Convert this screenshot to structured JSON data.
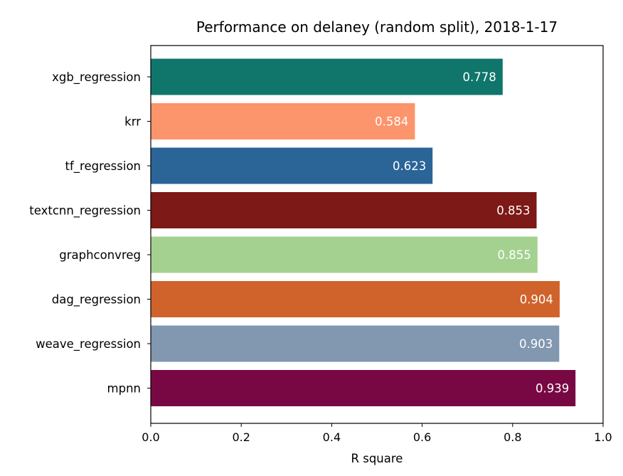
{
  "chart_data": {
    "type": "bar",
    "orientation": "horizontal",
    "title": "Performance on delaney (random split), 2018-1-17",
    "xlabel": "R square",
    "ylabel": "",
    "xlim": [
      0,
      1.0
    ],
    "xticks": [
      "0.0",
      "0.2",
      "0.4",
      "0.6",
      "0.8",
      "1.0"
    ],
    "grid": false,
    "categories": [
      "xgb_regression",
      "krr",
      "tf_regression",
      "textcnn_regression",
      "graphconvreg",
      "dag_regression",
      "weave_regression",
      "mpnn"
    ],
    "values": [
      0.778,
      0.584,
      0.623,
      0.853,
      0.855,
      0.904,
      0.903,
      0.939
    ],
    "value_labels": [
      "0.778",
      "0.584",
      "0.623",
      "0.853",
      "0.855",
      "0.904",
      "0.903",
      "0.939"
    ],
    "colors": [
      "#10756b",
      "#fc946c",
      "#2b6497",
      "#7d1916",
      "#a4d190",
      "#d0632b",
      "#8297b0",
      "#780843"
    ]
  }
}
